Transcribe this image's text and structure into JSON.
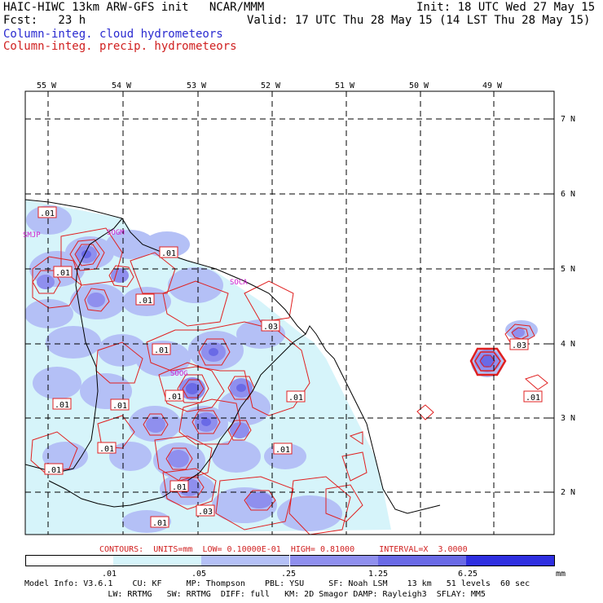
{
  "header": {
    "line1_left": "HAIC-HIWC 13km ARW-GFS init   NCAR/MMM",
    "line1_right": "Init: 18 UTC Wed 27 May 15",
    "line2_left": "Fcst:   23 h",
    "line2_right": "Valid: 17 UTC Thu 28 May 15 (14 LST Thu 28 May 15)",
    "legend_cloud": "Column-integ. cloud hydrometeors",
    "legend_precip": "Column-integ. precip. hydrometeors"
  },
  "axes": {
    "longitudes": [
      "55 W",
      "54 W",
      "53 W",
      "52 W",
      "51 W",
      "50 W",
      "49 W"
    ],
    "latitudes": [
      "7 N",
      "6 N",
      "5 N",
      "4 N",
      "3 N",
      "2 N"
    ]
  },
  "stations": [
    "SMJP",
    "SOGM",
    "SOCA",
    "SOOG"
  ],
  "contour_labels": [
    ".01",
    ".01",
    ".01",
    ".01",
    ".03",
    ".01",
    ".01",
    ".01",
    ".01",
    ".01",
    ".01",
    ".01",
    ".01",
    ".01",
    ".03",
    ".01",
    ".03",
    ".01"
  ],
  "contour_info": {
    "contours": "CONTOURS:",
    "units": "UNITS=mm",
    "low": "LOW= 0.10000E-01",
    "high": "HIGH= 0.81000",
    "interval": "INTERVAL=X  3.0000"
  },
  "colorbar": {
    "ticks": [
      ".01",
      ".05",
      ".25",
      "1.25",
      "6.25"
    ],
    "unit": "mm",
    "colors": [
      "#ffffff",
      "#d6f4fa",
      "#b4c0f6",
      "#8f8fee",
      "#6a6ae6",
      "#2f2fe0"
    ]
  },
  "model_info": {
    "line1": "Model Info: V3.6.1    CU: KF     MP: Thompson    PBL: YSU     SF: Noah LSM    13 km   51 levels  60 sec",
    "line2": "                 LW: RRTMG   SW: RRTMG  DIFF: full   KM: 2D Smagor DAMP: Rayleigh3  SFLAY: MM5"
  }
}
